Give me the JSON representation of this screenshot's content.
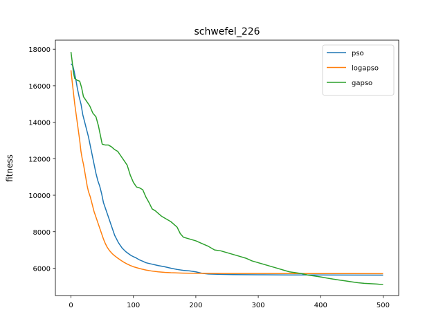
{
  "chart_data": {
    "type": "line",
    "title": "schwefel_226",
    "xlabel": "",
    "ylabel": "fitness",
    "xlim": [
      -25,
      525
    ],
    "ylim": [
      4500,
      18500
    ],
    "xticks": [
      0,
      100,
      200,
      300,
      400,
      500
    ],
    "yticks": [
      6000,
      8000,
      10000,
      12000,
      14000,
      16000,
      18000
    ],
    "grid": false,
    "legend": "top-right",
    "series": [
      {
        "name": "pso",
        "color": "#1f77b4",
        "points": [
          [
            0,
            17200
          ],
          [
            3,
            17100
          ],
          [
            5,
            16800
          ],
          [
            8,
            16300
          ],
          [
            10,
            15900
          ],
          [
            13,
            15400
          ],
          [
            16,
            15000
          ],
          [
            19,
            14400
          ],
          [
            22,
            14000
          ],
          [
            25,
            13600
          ],
          [
            28,
            13200
          ],
          [
            31,
            12700
          ],
          [
            34,
            12200
          ],
          [
            37,
            11700
          ],
          [
            40,
            11200
          ],
          [
            43,
            10800
          ],
          [
            46,
            10500
          ],
          [
            49,
            10100
          ],
          [
            52,
            9600
          ],
          [
            55,
            9300
          ],
          [
            58,
            9000
          ],
          [
            61,
            8700
          ],
          [
            64,
            8400
          ],
          [
            67,
            8100
          ],
          [
            70,
            7800
          ],
          [
            73,
            7600
          ],
          [
            76,
            7400
          ],
          [
            79,
            7250
          ],
          [
            82,
            7100
          ],
          [
            85,
            7000
          ],
          [
            88,
            6900
          ],
          [
            92,
            6800
          ],
          [
            96,
            6700
          ],
          [
            100,
            6630
          ],
          [
            105,
            6550
          ],
          [
            110,
            6450
          ],
          [
            115,
            6380
          ],
          [
            120,
            6300
          ],
          [
            130,
            6220
          ],
          [
            140,
            6140
          ],
          [
            150,
            6080
          ],
          [
            160,
            6000
          ],
          [
            170,
            5930
          ],
          [
            180,
            5880
          ],
          [
            190,
            5850
          ],
          [
            200,
            5800
          ],
          [
            210,
            5720
          ],
          [
            220,
            5680
          ],
          [
            240,
            5660
          ],
          [
            260,
            5650
          ],
          [
            300,
            5640
          ],
          [
            350,
            5630
          ],
          [
            400,
            5630
          ],
          [
            450,
            5625
          ],
          [
            500,
            5620
          ]
        ]
      },
      {
        "name": "logapso",
        "color": "#ff7f0e",
        "points": [
          [
            0,
            16850
          ],
          [
            2,
            16200
          ],
          [
            4,
            15600
          ],
          [
            6,
            15000
          ],
          [
            8,
            14500
          ],
          [
            10,
            14000
          ],
          [
            12,
            13500
          ],
          [
            14,
            13000
          ],
          [
            16,
            12400
          ],
          [
            18,
            12000
          ],
          [
            20,
            11700
          ],
          [
            22,
            11300
          ],
          [
            24,
            10900
          ],
          [
            26,
            10500
          ],
          [
            28,
            10200
          ],
          [
            31,
            9900
          ],
          [
            34,
            9500
          ],
          [
            37,
            9100
          ],
          [
            40,
            8800
          ],
          [
            43,
            8500
          ],
          [
            46,
            8200
          ],
          [
            49,
            7900
          ],
          [
            52,
            7600
          ],
          [
            55,
            7350
          ],
          [
            58,
            7150
          ],
          [
            62,
            6950
          ],
          [
            66,
            6800
          ],
          [
            70,
            6680
          ],
          [
            75,
            6550
          ],
          [
            80,
            6430
          ],
          [
            85,
            6320
          ],
          [
            90,
            6230
          ],
          [
            95,
            6150
          ],
          [
            100,
            6080
          ],
          [
            110,
            5980
          ],
          [
            120,
            5900
          ],
          [
            130,
            5840
          ],
          [
            140,
            5800
          ],
          [
            150,
            5770
          ],
          [
            160,
            5750
          ],
          [
            180,
            5730
          ],
          [
            200,
            5720
          ],
          [
            250,
            5710
          ],
          [
            300,
            5710
          ],
          [
            400,
            5705
          ],
          [
            500,
            5700
          ]
        ]
      },
      {
        "name": "gapso",
        "color": "#2ca02c",
        "points": [
          [
            0,
            17850
          ],
          [
            2,
            17300
          ],
          [
            4,
            16700
          ],
          [
            6,
            16400
          ],
          [
            10,
            16300
          ],
          [
            14,
            16250
          ],
          [
            17,
            15900
          ],
          [
            20,
            15400
          ],
          [
            25,
            15150
          ],
          [
            30,
            14900
          ],
          [
            35,
            14500
          ],
          [
            40,
            14300
          ],
          [
            44,
            13800
          ],
          [
            47,
            13300
          ],
          [
            50,
            12800
          ],
          [
            55,
            12750
          ],
          [
            60,
            12750
          ],
          [
            65,
            12650
          ],
          [
            70,
            12500
          ],
          [
            75,
            12400
          ],
          [
            80,
            12150
          ],
          [
            85,
            11900
          ],
          [
            90,
            11650
          ],
          [
            95,
            11100
          ],
          [
            100,
            10700
          ],
          [
            105,
            10450
          ],
          [
            110,
            10400
          ],
          [
            115,
            10300
          ],
          [
            120,
            9900
          ],
          [
            125,
            9600
          ],
          [
            130,
            9250
          ],
          [
            135,
            9150
          ],
          [
            140,
            9000
          ],
          [
            145,
            8850
          ],
          [
            150,
            8750
          ],
          [
            155,
            8650
          ],
          [
            160,
            8550
          ],
          [
            165,
            8400
          ],
          [
            170,
            8250
          ],
          [
            175,
            7900
          ],
          [
            180,
            7700
          ],
          [
            190,
            7600
          ],
          [
            200,
            7500
          ],
          [
            210,
            7350
          ],
          [
            220,
            7200
          ],
          [
            230,
            7000
          ],
          [
            240,
            6950
          ],
          [
            250,
            6850
          ],
          [
            260,
            6750
          ],
          [
            270,
            6650
          ],
          [
            280,
            6550
          ],
          [
            290,
            6400
          ],
          [
            300,
            6300
          ],
          [
            310,
            6200
          ],
          [
            320,
            6100
          ],
          [
            330,
            6000
          ],
          [
            340,
            5900
          ],
          [
            350,
            5800
          ],
          [
            360,
            5750
          ],
          [
            370,
            5700
          ],
          [
            380,
            5620
          ],
          [
            390,
            5570
          ],
          [
            400,
            5520
          ],
          [
            410,
            5460
          ],
          [
            420,
            5400
          ],
          [
            430,
            5350
          ],
          [
            440,
            5300
          ],
          [
            450,
            5250
          ],
          [
            460,
            5200
          ],
          [
            470,
            5170
          ],
          [
            480,
            5150
          ],
          [
            490,
            5130
          ],
          [
            500,
            5100
          ]
        ]
      }
    ]
  }
}
